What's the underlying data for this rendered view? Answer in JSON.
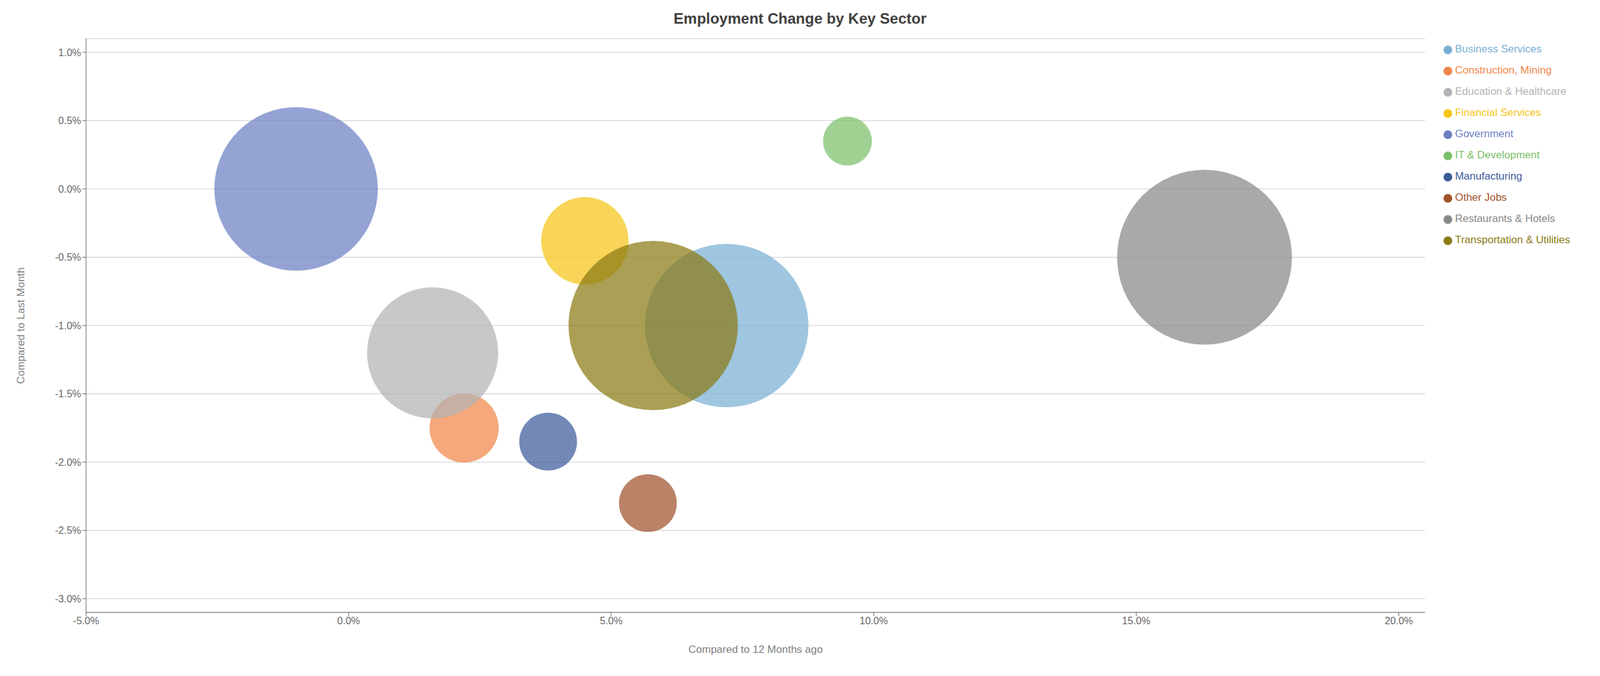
{
  "chart_data": {
    "type": "scatter",
    "title": "Employment Change by Key Sector",
    "x_label": "Compared to 12 Months ago",
    "y_label": "Compared to Last Month",
    "xlim": [
      -0.05,
      0.205
    ],
    "ylim": [
      -0.031,
      0.011
    ],
    "xticks": [
      {
        "value": -0.05,
        "label": "-5.0%"
      },
      {
        "value": 0.0,
        "label": "0.0%"
      },
      {
        "value": 0.05,
        "label": "5.0%"
      },
      {
        "value": 0.1,
        "label": "10.0%"
      },
      {
        "value": 0.15,
        "label": "15.0%"
      },
      {
        "value": 0.2,
        "label": "20.0%"
      }
    ],
    "yticks": [
      {
        "value": -0.03,
        "label": "-3.0%"
      },
      {
        "value": -0.025,
        "label": "-2.5%"
      },
      {
        "value": -0.02,
        "label": "-2.0%"
      },
      {
        "value": -0.015,
        "label": "-1.5%"
      },
      {
        "value": -0.01,
        "label": "-1.0%"
      },
      {
        "value": -0.005,
        "label": "-0.5%"
      },
      {
        "value": 0.0,
        "label": "0.0%"
      },
      {
        "value": 0.005,
        "label": "0.5%"
      },
      {
        "value": 0.01,
        "label": "1.0%"
      }
    ],
    "grid": "y",
    "legend": "right",
    "series": [
      {
        "name": "Business Services",
        "color": "#7ab0d4",
        "x": [
          0.072
        ],
        "y": [
          -0.01
        ],
        "size": [
          28000
        ]
      },
      {
        "name": "Construction, Mining",
        "color": "#f0874a",
        "x": [
          0.022
        ],
        "y": [
          -0.0175
        ],
        "size": [
          5000
        ]
      },
      {
        "name": "Education & Healthcare",
        "color": "#b3b3b3",
        "x": [
          0.016
        ],
        "y": [
          -0.012
        ],
        "size": [
          18000
        ]
      },
      {
        "name": "Financial Services",
        "color": "#f5c518",
        "x": [
          0.045
        ],
        "y": [
          -0.0038
        ],
        "size": [
          8000
        ]
      },
      {
        "name": "Government",
        "color": "#6b7fc4",
        "x": [
          -0.01
        ],
        "y": [
          0.0
        ],
        "size": [
          28000
        ]
      },
      {
        "name": "IT & Development",
        "color": "#7bbf6a",
        "x": [
          0.095
        ],
        "y": [
          0.0035
        ],
        "size": [
          2500
        ]
      },
      {
        "name": "Manufacturing",
        "color": "#3b5a9a",
        "x": [
          0.038
        ],
        "y": [
          -0.0185
        ],
        "size": [
          3500
        ]
      },
      {
        "name": "Other Jobs",
        "color": "#a0522d",
        "x": [
          0.057
        ],
        "y": [
          -0.023
        ],
        "size": [
          3500
        ]
      },
      {
        "name": "Restaurants & Hotels",
        "color": "#888888",
        "x": [
          0.163
        ],
        "y": [
          -0.005
        ],
        "size": [
          32000
        ]
      },
      {
        "name": "Transportation & Utilities",
        "color": "#8b7a14",
        "x": [
          0.058
        ],
        "y": [
          -0.01
        ],
        "size": [
          30000
        ]
      }
    ]
  }
}
